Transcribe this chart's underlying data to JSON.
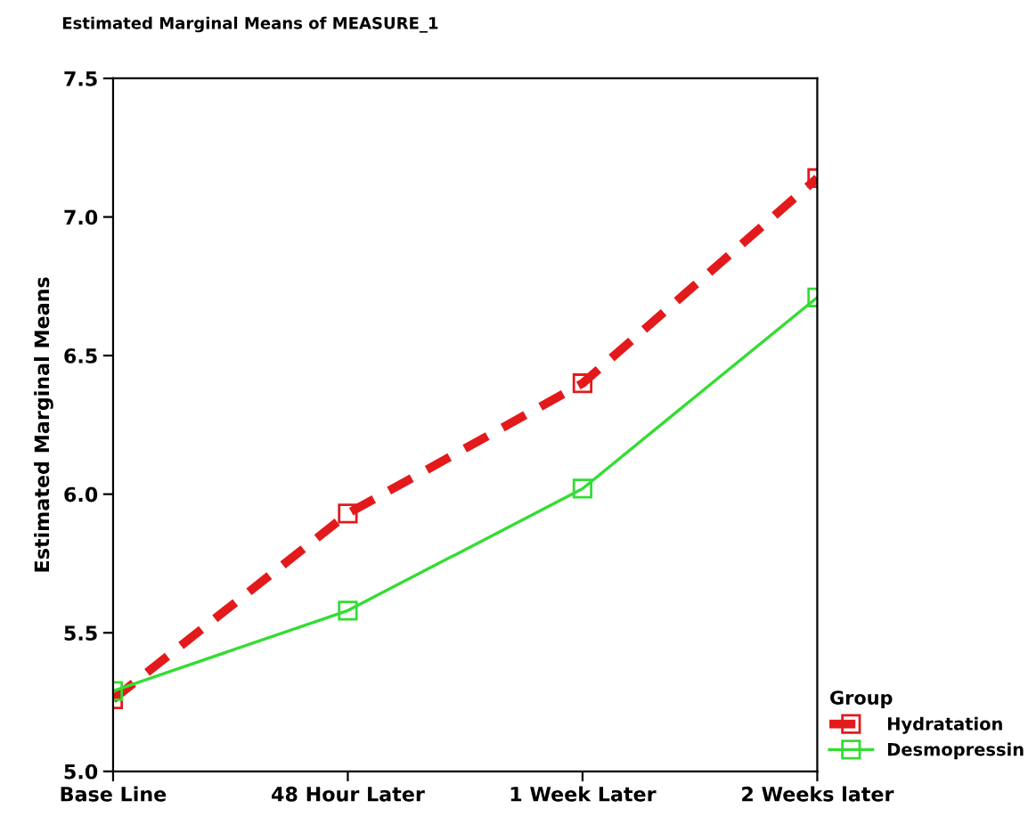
{
  "chart_data": {
    "type": "line",
    "title": "Estimated Marginal Means of MEASURE_1",
    "ylabel": "Estimated Marginal Means",
    "legend_title": "Group",
    "categories": [
      "Base Line",
      "48 Hour Later",
      "1 Week Later",
      "2 Weeks later"
    ],
    "series": [
      {
        "name": "Hydratation",
        "color": "#e31a1c",
        "values": [
          5.26,
          5.93,
          6.4,
          7.14
        ],
        "line_style": "dashed"
      },
      {
        "name": "Desmopressin",
        "color": "#33dd33",
        "values": [
          5.29,
          5.58,
          6.02,
          6.71
        ],
        "line_style": "solid"
      }
    ],
    "ylim": [
      5.0,
      7.5
    ],
    "yticks": [
      {
        "value": 5.0,
        "label": "5.0"
      },
      {
        "value": 5.5,
        "label": "5.5"
      },
      {
        "value": 6.0,
        "label": "6.0"
      },
      {
        "value": 6.5,
        "label": "6.5"
      },
      {
        "value": 7.0,
        "label": "7.0"
      },
      {
        "value": 7.5,
        "label": "7.5"
      }
    ],
    "marker": "square",
    "grid": false,
    "legend": "bottom right"
  }
}
